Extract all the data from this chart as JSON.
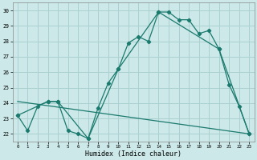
{
  "xlabel": "Humidex (Indice chaleur)",
  "xlim_min": -0.5,
  "xlim_max": 23.5,
  "ylim_min": 21.5,
  "ylim_max": 30.5,
  "yticks": [
    22,
    23,
    24,
    25,
    26,
    27,
    28,
    29,
    30
  ],
  "xticks": [
    0,
    1,
    2,
    3,
    4,
    5,
    6,
    7,
    8,
    9,
    10,
    11,
    12,
    13,
    14,
    15,
    16,
    17,
    18,
    19,
    20,
    21,
    22,
    23
  ],
  "background_color": "#cce8e8",
  "grid_color": "#aad0d0",
  "line_color": "#1a7a6e",
  "line1_x": [
    0,
    1,
    2,
    3,
    4,
    5,
    6,
    7,
    8,
    9,
    10,
    11,
    12,
    13,
    14,
    15,
    16,
    17,
    18,
    19,
    20,
    21,
    22,
    23
  ],
  "line1_y": [
    23.2,
    22.2,
    23.8,
    24.1,
    24.1,
    22.2,
    22.0,
    21.7,
    23.7,
    25.3,
    26.2,
    27.9,
    28.3,
    28.0,
    29.9,
    29.9,
    29.4,
    29.4,
    28.5,
    28.7,
    27.5,
    25.2,
    23.8,
    22.0
  ],
  "line2_x": [
    0,
    3,
    4,
    7,
    10,
    14,
    20,
    23
  ],
  "line2_y": [
    23.2,
    24.1,
    24.1,
    21.7,
    26.2,
    29.9,
    27.5,
    22.0
  ],
  "line3_x": [
    0,
    23
  ],
  "line3_y": [
    24.1,
    22.0
  ]
}
